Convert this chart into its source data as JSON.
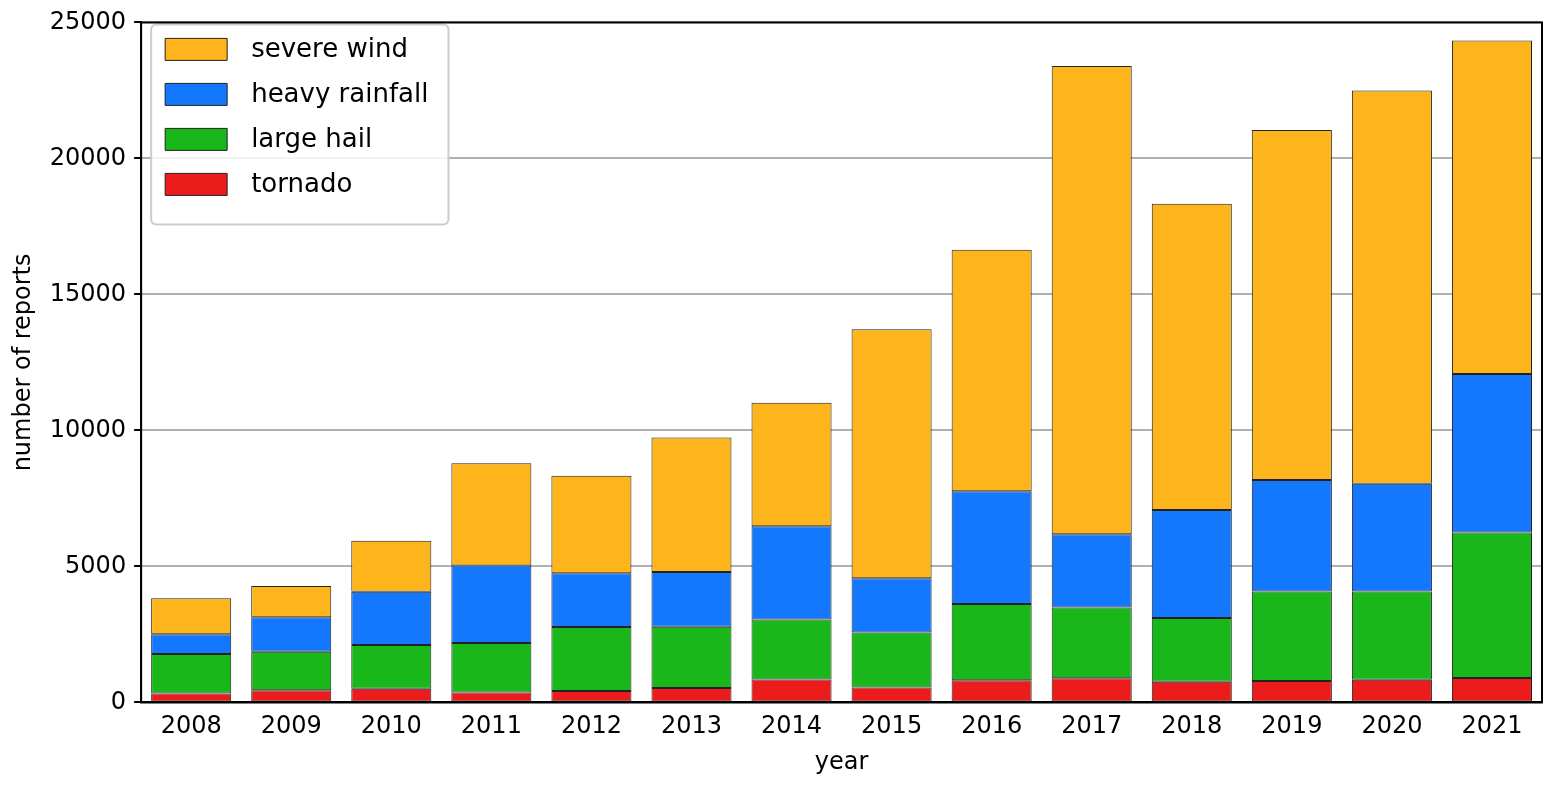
{
  "chart_data": {
    "type": "bar",
    "stacked": true,
    "xlabel": "year",
    "ylabel": "number of reports",
    "categories": [
      "2008",
      "2009",
      "2010",
      "2011",
      "2012",
      "2013",
      "2014",
      "2015",
      "2016",
      "2017",
      "2018",
      "2019",
      "2020",
      "2021"
    ],
    "series": [
      {
        "name": "tornado",
        "color": "#ed1c1c",
        "values": [
          330,
          450,
          500,
          360,
          420,
          530,
          840,
          550,
          810,
          890,
          760,
          790,
          830,
          900
        ]
      },
      {
        "name": "large hail",
        "color": "#1ab71a",
        "values": [
          1450,
          1410,
          1610,
          1820,
          2350,
          2250,
          2210,
          2020,
          2810,
          2600,
          2340,
          3290,
          3250,
          5350
        ]
      },
      {
        "name": "heavy rainfall",
        "color": "#1478ff",
        "values": [
          730,
          1270,
          1960,
          2850,
          1980,
          2010,
          3430,
          1990,
          4140,
          2690,
          3970,
          4100,
          3960,
          5820
        ]
      },
      {
        "name": "severe wind",
        "color": "#fdb51b",
        "values": [
          1320,
          1150,
          1870,
          3760,
          3580,
          4950,
          4540,
          9160,
          8880,
          17220,
          11260,
          12860,
          14460,
          12260
        ]
      }
    ],
    "ylim": [
      0,
      25000
    ],
    "yticks": [
      0,
      5000,
      10000,
      15000,
      20000,
      25000
    ],
    "grid": "y",
    "legend": "top left"
  }
}
